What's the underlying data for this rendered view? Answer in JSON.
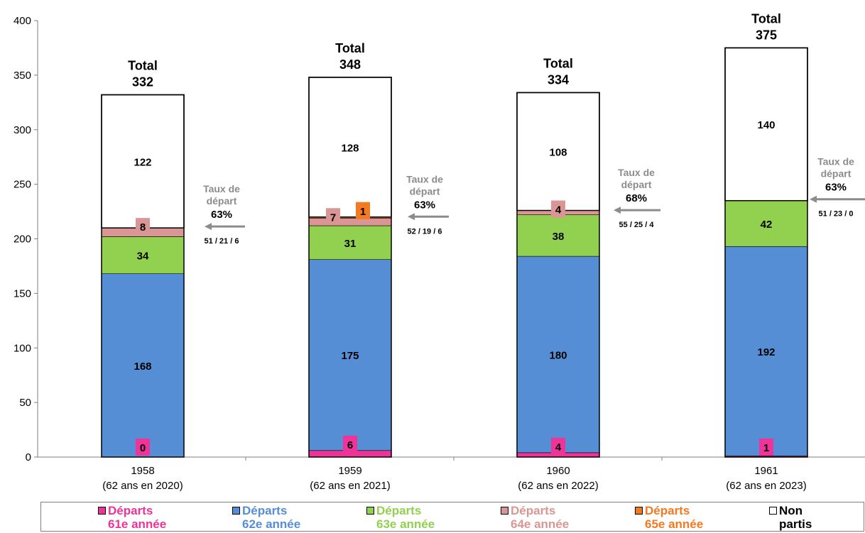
{
  "chart_data": {
    "type": "bar",
    "stacked": true,
    "ylim": [
      0,
      400
    ],
    "yticks": [
      "0",
      "50",
      "100",
      "150",
      "200",
      "250",
      "300",
      "350",
      "400"
    ],
    "categories": [
      {
        "line1": "1958",
        "line2": "(62 ans en 2020)"
      },
      {
        "line1": "1959",
        "line2": "(62 ans en 2021)"
      },
      {
        "line1": "1960",
        "line2": "(62 ans en 2022)"
      },
      {
        "line1": "1961",
        "line2": "(62 ans en 2023)"
      }
    ],
    "series": [
      {
        "key": "d61",
        "color": "#ee3399",
        "values": [
          0,
          6,
          4,
          1
        ]
      },
      {
        "key": "d62",
        "color": "#558ed5",
        "values": [
          168,
          175,
          180,
          192
        ]
      },
      {
        "key": "d63",
        "color": "#92d050",
        "values": [
          34,
          31,
          38,
          42
        ]
      },
      {
        "key": "d64",
        "color": "#da9694",
        "values": [
          8,
          7,
          4,
          0
        ]
      },
      {
        "key": "d65",
        "color": "#f47920",
        "values": [
          0,
          1,
          0,
          0
        ]
      },
      {
        "key": "non",
        "color": "#ffffff",
        "values": [
          122,
          128,
          108,
          140
        ]
      }
    ],
    "totals": [
      {
        "label": "Total",
        "value": "332"
      },
      {
        "label": "Total",
        "value": "348"
      },
      {
        "label": "Total",
        "value": "334"
      },
      {
        "label": "Total",
        "value": "375"
      }
    ],
    "rates": [
      {
        "line1": "Taux de",
        "line2": "départ",
        "pct": "63%",
        "breakdown": "51 / 21 / 6",
        "y": 210
      },
      {
        "line1": "Taux de",
        "line2": "départ",
        "pct": "63%",
        "breakdown": "52 / 19 / 6",
        "y": 219
      },
      {
        "line1": "Taux de",
        "line2": "départ",
        "pct": "68%",
        "breakdown": "55 / 25 / 4",
        "y": 225
      },
      {
        "line1": "Taux de",
        "line2": "départ",
        "pct": "63%",
        "breakdown": "51 / 23 / 0",
        "y": 235
      }
    ],
    "legend": [
      {
        "line1": "Départs",
        "line2": "61e année",
        "color": "#ee3399",
        "text_color": "#ee3399"
      },
      {
        "line1": "Départs",
        "line2": "62e année",
        "color": "#558ed5",
        "text_color": "#558ed5"
      },
      {
        "line1": "Départs",
        "line2": "63e année",
        "color": "#92d050",
        "text_color": "#92d050"
      },
      {
        "line1": "Départs",
        "line2": "64e année",
        "color": "#da9694",
        "text_color": "#da9694"
      },
      {
        "line1": "Départs",
        "line2": "65e année",
        "color": "#f47920",
        "text_color": "#f47920"
      },
      {
        "line1": "Non",
        "line2": "partis",
        "color": "#ffffff",
        "text_color": "#000000"
      }
    ]
  }
}
